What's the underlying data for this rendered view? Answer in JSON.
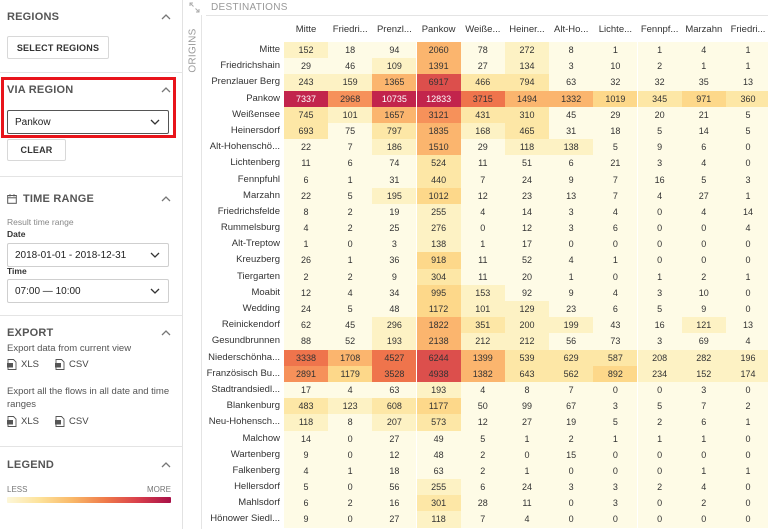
{
  "sidebar": {
    "regions": {
      "title": "REGIONS",
      "select_button": "SELECT REGIONS"
    },
    "via_region": {
      "title": "VIA REGION",
      "selected": "Pankow",
      "clear_button": "CLEAR"
    },
    "time_range": {
      "title": "TIME RANGE",
      "result_label": "Result time range",
      "date_label": "Date",
      "date_value": "2018-01-01 - 2018-12-31",
      "time_label": "Time",
      "time_value": "07:00 — 10:00"
    },
    "export": {
      "title": "EXPORT",
      "current_view_text": "Export data from current view",
      "xls": "XLS",
      "csv": "CSV",
      "all_flows_text": "Export all the flows in all date and time ranges",
      "xls2": "XLS",
      "csv2": "CSV"
    },
    "legend": {
      "title": "LEGEND",
      "less": "LESS",
      "more": "MORE"
    }
  },
  "matrix": {
    "destinations_title": "DESTINATIONS",
    "origins_title": "ORIGINS",
    "columns": [
      "Mitte",
      "Friedri...",
      "Prenzl...",
      "Pankow",
      "Weiße...",
      "Heiner...",
      "Alt-Ho...",
      "Lichte...",
      "Fennpf...",
      "Marzahn",
      "Friedri..."
    ],
    "rows": [
      {
        "label": "Mitte",
        "values": [
          "152",
          "18",
          "94",
          "2060",
          "78",
          "272",
          "8",
          "1",
          "1",
          "4",
          "1"
        ]
      },
      {
        "label": "Friedrichshain",
        "values": [
          "29",
          "46",
          "109",
          "1391",
          "27",
          "134",
          "3",
          "10",
          "2",
          "1",
          "1"
        ]
      },
      {
        "label": "Prenzlauer Berg",
        "values": [
          "243",
          "159",
          "1365",
          "6917",
          "466",
          "794",
          "63",
          "32",
          "32",
          "35",
          "13"
        ]
      },
      {
        "label": "Pankow",
        "values": [
          "7337",
          "2968",
          "10735",
          "12833",
          "3715",
          "1494",
          "1332",
          "1019",
          "345",
          "971",
          "360"
        ]
      },
      {
        "label": "Weißensee",
        "values": [
          "745",
          "101",
          "1657",
          "3121",
          "431",
          "310",
          "45",
          "29",
          "20",
          "21",
          "5"
        ]
      },
      {
        "label": "Heinersdorf",
        "values": [
          "693",
          "75",
          "797",
          "1835",
          "168",
          "465",
          "31",
          "18",
          "5",
          "14",
          "5"
        ]
      },
      {
        "label": "Alt-Hohenschö...",
        "values": [
          "22",
          "7",
          "186",
          "1510",
          "29",
          "118",
          "138",
          "5",
          "9",
          "6",
          "0"
        ]
      },
      {
        "label": "Lichtenberg",
        "values": [
          "11",
          "6",
          "74",
          "524",
          "11",
          "51",
          "6",
          "21",
          "3",
          "4",
          "0"
        ]
      },
      {
        "label": "Fennpfuhl",
        "values": [
          "6",
          "1",
          "31",
          "440",
          "7",
          "24",
          "9",
          "7",
          "16",
          "5",
          "3"
        ]
      },
      {
        "label": "Marzahn",
        "values": [
          "22",
          "5",
          "195",
          "1012",
          "12",
          "23",
          "13",
          "7",
          "4",
          "27",
          "1"
        ]
      },
      {
        "label": "Friedrichsfelde",
        "values": [
          "8",
          "2",
          "19",
          "255",
          "4",
          "14",
          "3",
          "4",
          "0",
          "4",
          "14"
        ]
      },
      {
        "label": "Rummelsburg",
        "values": [
          "4",
          "2",
          "25",
          "276",
          "0",
          "12",
          "3",
          "6",
          "0",
          "0",
          "4"
        ]
      },
      {
        "label": "Alt-Treptow",
        "values": [
          "1",
          "0",
          "3",
          "138",
          "1",
          "17",
          "0",
          "0",
          "0",
          "0",
          "0"
        ]
      },
      {
        "label": "Kreuzberg",
        "values": [
          "26",
          "1",
          "36",
          "918",
          "11",
          "52",
          "4",
          "1",
          "0",
          "0",
          "0"
        ]
      },
      {
        "label": "Tiergarten",
        "values": [
          "2",
          "2",
          "9",
          "304",
          "11",
          "20",
          "1",
          "0",
          "1",
          "2",
          "1"
        ]
      },
      {
        "label": "Moabit",
        "values": [
          "12",
          "4",
          "34",
          "995",
          "153",
          "92",
          "9",
          "4",
          "3",
          "10",
          "0"
        ]
      },
      {
        "label": "Wedding",
        "values": [
          "24",
          "5",
          "48",
          "1172",
          "101",
          "129",
          "23",
          "6",
          "5",
          "9",
          "0"
        ]
      },
      {
        "label": "Reinickendorf",
        "values": [
          "62",
          "45",
          "296",
          "1822",
          "351",
          "200",
          "199",
          "43",
          "16",
          "121",
          "13"
        ]
      },
      {
        "label": "Gesundbrunnen",
        "values": [
          "88",
          "52",
          "193",
          "2138",
          "212",
          "212",
          "56",
          "73",
          "3",
          "69",
          "4"
        ]
      },
      {
        "label": "Niederschönha...",
        "values": [
          "3338",
          "1708",
          "4527",
          "6244",
          "1399",
          "539",
          "629",
          "587",
          "208",
          "282",
          "196"
        ]
      },
      {
        "label": "Französisch Bu...",
        "values": [
          "2891",
          "1179",
          "3528",
          "4938",
          "1382",
          "643",
          "562",
          "892",
          "234",
          "152",
          "174"
        ]
      },
      {
        "label": "Stadtrandsiedl...",
        "values": [
          "17",
          "4",
          "63",
          "193",
          "4",
          "8",
          "7",
          "0",
          "0",
          "3",
          "0"
        ]
      },
      {
        "label": "Blankenburg",
        "values": [
          "483",
          "123",
          "608",
          "1177",
          "50",
          "99",
          "67",
          "3",
          "5",
          "7",
          "2"
        ]
      },
      {
        "label": "Neu-Hohensch...",
        "values": [
          "118",
          "8",
          "207",
          "573",
          "12",
          "27",
          "19",
          "5",
          "2",
          "6",
          "1"
        ]
      },
      {
        "label": "Malchow",
        "values": [
          "14",
          "0",
          "27",
          "49",
          "5",
          "1",
          "2",
          "1",
          "1",
          "1",
          "0"
        ]
      },
      {
        "label": "Wartenberg",
        "values": [
          "9",
          "0",
          "12",
          "48",
          "2",
          "0",
          "15",
          "0",
          "0",
          "0",
          "0"
        ]
      },
      {
        "label": "Falkenberg",
        "values": [
          "4",
          "1",
          "18",
          "63",
          "2",
          "1",
          "0",
          "0",
          "0",
          "1",
          "1"
        ]
      },
      {
        "label": "Hellersdorf",
        "values": [
          "5",
          "0",
          "56",
          "255",
          "6",
          "24",
          "3",
          "3",
          "2",
          "4",
          "0"
        ]
      },
      {
        "label": "Mahlsdorf",
        "values": [
          "6",
          "2",
          "16",
          "301",
          "28",
          "11",
          "0",
          "3",
          "0",
          "2",
          "0"
        ]
      },
      {
        "label": "Hönower Siedl...",
        "values": [
          "9",
          "0",
          "27",
          "118",
          "7",
          "4",
          "0",
          "0",
          "0",
          "0",
          "0"
        ]
      }
    ]
  },
  "colors": {
    "highlight": "#e8141b",
    "scale": [
      "#fefbe6",
      "#fdf2c4",
      "#fde7a6",
      "#fdd88a",
      "#fbb56e",
      "#f6915a",
      "#ef744c",
      "#dc4f4c",
      "#c2244c"
    ]
  },
  "icons": {
    "collapse": "chevron-up-icon",
    "dropdown": "chevron-down-icon",
    "calendar": "calendar-icon",
    "export": "upload-icon",
    "legend": "legend-icon",
    "file": "file-icon",
    "expand": "expand-icon"
  }
}
